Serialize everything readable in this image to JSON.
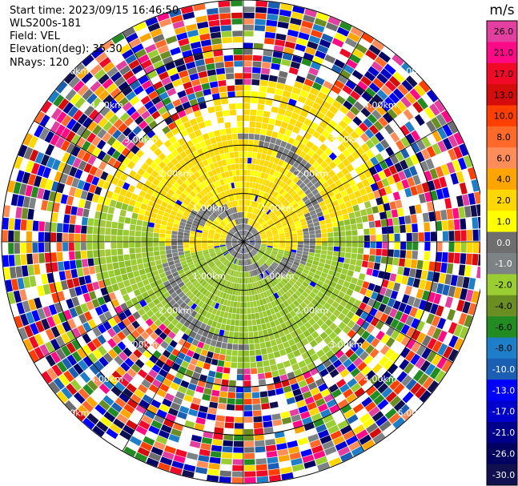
{
  "header": {
    "start_time": "Start time: 2023/09/15 16:46:50",
    "instrument": "WLS200s-181",
    "field": "Field: VEL",
    "elevation": "Elevation(deg): 35.30",
    "nrays": "NRays: 120"
  },
  "chart_data": {
    "type": "heatmap",
    "subtype": "ppi-polar",
    "field": "VEL",
    "units": "m/s",
    "elevation_deg": 35.3,
    "n_rays": 120,
    "range_rings_km": [
      1.0,
      2.0,
      3.0,
      4.0,
      5.0
    ],
    "ring_labels": [
      "1.00km",
      "2.00km",
      "3.00km",
      "4.00km",
      "5.00km"
    ],
    "max_range_km": 5.0,
    "colorbar": {
      "title": "m/s",
      "tick_labels": [
        "26.0",
        "21.0",
        "17.0",
        "13.0",
        "10.0",
        "8.0",
        "6.0",
        "4.0",
        "2.0",
        "1.0",
        "0.0",
        "-1.0",
        "-2.0",
        "-4.0",
        "-6.0",
        "-8.0",
        "-10.0",
        "-13.0",
        "-17.0",
        "-21.0",
        "-26.0",
        "-30.0"
      ],
      "colors": [
        "#e23fa0",
        "#ff0a87",
        "#f00a28",
        "#d40c0c",
        "#ff3f00",
        "#ff6a2a",
        "#ff8d5a",
        "#ffa500",
        "#ffd700",
        "#ffff00",
        "#6e6e6e",
        "#7d8284",
        "#9acd32",
        "#6b8e23",
        "#228b22",
        "#1e7ec8",
        "#1a5fb4",
        "#0000ff",
        "#0000cd",
        "#00008b",
        "#000060",
        "#101050"
      ]
    },
    "pattern": {
      "inner_positive_region": "north",
      "inner_negative_region": "south",
      "noise_beyond_km": 2.9
    }
  }
}
